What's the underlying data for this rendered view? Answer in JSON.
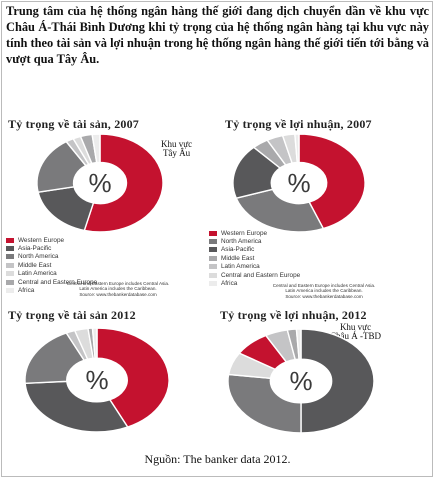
{
  "intro_text": "Trung tâm của hệ thống ngân hàng thế giới đang dịch chuyển dần về khu vực Châu Á-Thái Bình Dương khi tỷ trọng của hệ thống ngân hàng tại khu vực này tính theo tài sản và lợi nhuận trong hệ thống ngân hàng thế giới tiến tới bằng và vượt qua Tây Âu.",
  "source_text": "Nguồn: The banker data 2012.",
  "legend_labels": [
    "Western Europe",
    "Asia-Pacific",
    "North America",
    "Middle East",
    "Latin America",
    "Central and Eastern Europe",
    "Africa"
  ],
  "legend_labels_profit_2007": [
    "Western Europe",
    "North America",
    "Asia-Pacific",
    "Middle East",
    "Latin America",
    "Central and Eastern Europe",
    "Africa"
  ],
  "footnote": [
    "Central and Eastern Europe includes Central Asia.",
    "Latin America includes the Caribbean.",
    "Source: www.thebankerdatabase.com"
  ],
  "colors": {
    "western_europe": "#c4122f",
    "dark_gray": "#58585a",
    "mid_gray": "#7a7a7c",
    "gray": "#9a9a9c",
    "light_gray": "#c4c4c6",
    "lighter_gray": "#dcdcdc",
    "lightest_gray": "#ececec"
  },
  "chart_data": [
    {
      "type": "pie",
      "title": "Tỷ trọng về tài sản, 2007",
      "center_label": "%",
      "annotation": [
        "Khu vực",
        "Tây Âu"
      ],
      "slices": [
        {
          "name": "Western Europe",
          "value": 54,
          "color": "#c4122f"
        },
        {
          "name": "Asia-Pacific",
          "value": 18,
          "color": "#58585a"
        },
        {
          "name": "North America",
          "value": 19,
          "color": "#7a7a7c"
        },
        {
          "name": "Middle East",
          "value": 2,
          "color": "#c4c4c6"
        },
        {
          "name": "Latin America",
          "value": 2,
          "color": "#dcdcdc"
        },
        {
          "name": "Central and Eastern Europe",
          "value": 3,
          "color": "#a9a9ab"
        },
        {
          "name": "Africa",
          "value": 2,
          "color": "#ececec"
        }
      ]
    },
    {
      "type": "pie",
      "title": "Tỷ trọng về lợi nhuận, 2007",
      "center_label": "%",
      "slices": [
        {
          "name": "Western Europe",
          "value": 44,
          "color": "#c4122f"
        },
        {
          "name": "North America",
          "value": 26,
          "color": "#7a7a7c"
        },
        {
          "name": "Asia-Pacific",
          "value": 18,
          "color": "#58585a"
        },
        {
          "name": "Middle East",
          "value": 4,
          "color": "#a9a9ab"
        },
        {
          "name": "Latin America",
          "value": 4,
          "color": "#c4c4c6"
        },
        {
          "name": "Central and Eastern Europe",
          "value": 3,
          "color": "#dcdcdc"
        },
        {
          "name": "Africa",
          "value": 1,
          "color": "#ececec"
        }
      ]
    },
    {
      "type": "pie",
      "title": "Tỷ trọng về tài sản 2012",
      "center_label": "%",
      "slices": [
        {
          "name": "Western Europe",
          "value": 43,
          "color": "#c4122f"
        },
        {
          "name": "Asia-Pacific",
          "value": 31,
          "color": "#58585a"
        },
        {
          "name": "North America",
          "value": 19,
          "color": "#7a7a7c"
        },
        {
          "name": "Middle East",
          "value": 2,
          "color": "#c4c4c6"
        },
        {
          "name": "Latin America",
          "value": 3,
          "color": "#dcdcdc"
        },
        {
          "name": "Central and Eastern Europe",
          "value": 1,
          "color": "#a9a9ab"
        },
        {
          "name": "Africa",
          "value": 1,
          "color": "#ececec"
        }
      ]
    },
    {
      "type": "pie",
      "title": "Tỷ trọng về lợi nhuận, 2012",
      "center_label": "%",
      "annotation": [
        "Khu vực",
        "Châu Á -TBD"
      ],
      "slices": [
        {
          "name": "Asia-Pacific",
          "value": 50,
          "color": "#58585a"
        },
        {
          "name": "North America",
          "value": 27,
          "color": "#7a7a7c"
        },
        {
          "name": "Middle East",
          "value": 7,
          "color": "#dcdcdc"
        },
        {
          "name": "Western Europe",
          "value": 8,
          "color": "#c4122f"
        },
        {
          "name": "Latin America",
          "value": 5,
          "color": "#c4c4c6"
        },
        {
          "name": "Central and Eastern Europe",
          "value": 2,
          "color": "#a9a9ab"
        },
        {
          "name": "Africa",
          "value": 1,
          "color": "#ececec"
        }
      ]
    }
  ]
}
